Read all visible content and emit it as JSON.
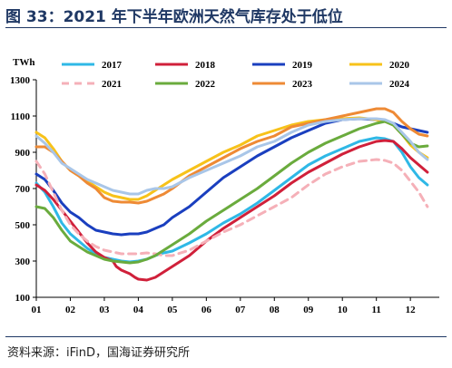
{
  "title": "图 33：2021 年下半年欧洲天然气库存处于低位",
  "source": "资料来源：iFinD，国海证券研究所",
  "chart_data": {
    "type": "line",
    "unit_label": "TWh",
    "ylim": [
      100,
      1300
    ],
    "yticks": [
      100,
      300,
      500,
      700,
      900,
      1100,
      1300
    ],
    "x": [
      1,
      2,
      3,
      4,
      5,
      6,
      7,
      8,
      9,
      10,
      11,
      12
    ],
    "xticks": [
      "01",
      "02",
      "03",
      "04",
      "05",
      "06",
      "07",
      "08",
      "09",
      "10",
      "11",
      "12"
    ],
    "grid": false,
    "legend": "top",
    "series": [
      {
        "name": "2017",
        "color": "#2fb8e6",
        "dash": false,
        "points": [
          [
            1.0,
            730
          ],
          [
            1.25,
            680
          ],
          [
            1.5,
            600
          ],
          [
            1.75,
            510
          ],
          [
            2.0,
            450
          ],
          [
            2.25,
            410
          ],
          [
            2.5,
            370
          ],
          [
            2.75,
            340
          ],
          [
            3.0,
            320
          ],
          [
            3.25,
            310
          ],
          [
            3.5,
            300
          ],
          [
            3.75,
            295
          ],
          [
            4.0,
            300
          ],
          [
            4.25,
            310
          ],
          [
            4.5,
            330
          ],
          [
            4.75,
            345
          ],
          [
            5.0,
            355
          ],
          [
            5.5,
            400
          ],
          [
            6.0,
            450
          ],
          [
            6.5,
            510
          ],
          [
            7.0,
            560
          ],
          [
            7.5,
            620
          ],
          [
            8.0,
            690
          ],
          [
            8.5,
            760
          ],
          [
            9.0,
            830
          ],
          [
            9.5,
            880
          ],
          [
            10.0,
            920
          ],
          [
            10.5,
            960
          ],
          [
            11.0,
            980
          ],
          [
            11.25,
            975
          ],
          [
            11.5,
            960
          ],
          [
            11.75,
            900
          ],
          [
            12.0,
            820
          ],
          [
            12.25,
            760
          ],
          [
            12.5,
            720
          ]
        ]
      },
      {
        "name": "2018",
        "color": "#d0203a",
        "dash": false,
        "points": [
          [
            1.0,
            720
          ],
          [
            1.25,
            690
          ],
          [
            1.5,
            640
          ],
          [
            1.75,
            580
          ],
          [
            2.0,
            520
          ],
          [
            2.25,
            460
          ],
          [
            2.5,
            400
          ],
          [
            2.75,
            350
          ],
          [
            3.0,
            320
          ],
          [
            3.25,
            300
          ],
          [
            3.35,
            270
          ],
          [
            3.5,
            250
          ],
          [
            3.75,
            230
          ],
          [
            3.9,
            210
          ],
          [
            4.0,
            200
          ],
          [
            4.25,
            195
          ],
          [
            4.5,
            210
          ],
          [
            4.75,
            240
          ],
          [
            5.0,
            270
          ],
          [
            5.5,
            330
          ],
          [
            6.0,
            410
          ],
          [
            6.5,
            480
          ],
          [
            7.0,
            540
          ],
          [
            7.5,
            600
          ],
          [
            8.0,
            660
          ],
          [
            8.5,
            730
          ],
          [
            9.0,
            790
          ],
          [
            9.5,
            840
          ],
          [
            10.0,
            890
          ],
          [
            10.5,
            930
          ],
          [
            11.0,
            960
          ],
          [
            11.25,
            965
          ],
          [
            11.5,
            960
          ],
          [
            11.75,
            920
          ],
          [
            12.0,
            870
          ],
          [
            12.25,
            830
          ],
          [
            12.5,
            790
          ]
        ]
      },
      {
        "name": "2019",
        "color": "#1a3fbf",
        "dash": false,
        "points": [
          [
            1.0,
            780
          ],
          [
            1.25,
            750
          ],
          [
            1.5,
            690
          ],
          [
            1.75,
            620
          ],
          [
            2.0,
            570
          ],
          [
            2.25,
            540
          ],
          [
            2.5,
            500
          ],
          [
            2.75,
            470
          ],
          [
            3.0,
            460
          ],
          [
            3.25,
            450
          ],
          [
            3.5,
            445
          ],
          [
            3.75,
            450
          ],
          [
            4.0,
            450
          ],
          [
            4.25,
            460
          ],
          [
            4.5,
            480
          ],
          [
            4.75,
            500
          ],
          [
            5.0,
            540
          ],
          [
            5.5,
            600
          ],
          [
            6.0,
            680
          ],
          [
            6.5,
            760
          ],
          [
            7.0,
            820
          ],
          [
            7.5,
            880
          ],
          [
            8.0,
            930
          ],
          [
            8.5,
            980
          ],
          [
            9.0,
            1020
          ],
          [
            9.5,
            1060
          ],
          [
            10.0,
            1080
          ],
          [
            10.5,
            1085
          ],
          [
            11.0,
            1080
          ],
          [
            11.25,
            1075
          ],
          [
            11.5,
            1060
          ],
          [
            11.75,
            1040
          ],
          [
            12.0,
            1030
          ],
          [
            12.25,
            1020
          ],
          [
            12.5,
            1010
          ]
        ]
      },
      {
        "name": "2020",
        "color": "#f7c21a",
        "dash": false,
        "points": [
          [
            1.0,
            1010
          ],
          [
            1.25,
            980
          ],
          [
            1.5,
            920
          ],
          [
            1.75,
            850
          ],
          [
            2.0,
            800
          ],
          [
            2.25,
            770
          ],
          [
            2.5,
            740
          ],
          [
            2.75,
            710
          ],
          [
            3.0,
            680
          ],
          [
            3.25,
            660
          ],
          [
            3.5,
            650
          ],
          [
            3.75,
            640
          ],
          [
            4.0,
            640
          ],
          [
            4.25,
            660
          ],
          [
            4.5,
            690
          ],
          [
            4.75,
            720
          ],
          [
            5.0,
            750
          ],
          [
            5.5,
            800
          ],
          [
            6.0,
            850
          ],
          [
            6.5,
            900
          ],
          [
            7.0,
            940
          ],
          [
            7.5,
            990
          ],
          [
            8.0,
            1020
          ],
          [
            8.5,
            1050
          ],
          [
            9.0,
            1070
          ],
          [
            9.5,
            1080
          ],
          [
            10.0,
            1085
          ],
          [
            10.5,
            1090
          ],
          [
            11.0,
            1080
          ],
          [
            11.25,
            1070
          ],
          [
            11.5,
            1050
          ],
          [
            11.75,
            1000
          ],
          [
            12.0,
            940
          ],
          [
            12.25,
            900
          ],
          [
            12.5,
            870
          ]
        ]
      },
      {
        "name": "2021",
        "color": "#f5b0b8",
        "dash": true,
        "points": [
          [
            1.0,
            850
          ],
          [
            1.25,
            780
          ],
          [
            1.5,
            680
          ],
          [
            1.75,
            580
          ],
          [
            2.0,
            500
          ],
          [
            2.25,
            450
          ],
          [
            2.5,
            410
          ],
          [
            2.75,
            380
          ],
          [
            3.0,
            360
          ],
          [
            3.25,
            350
          ],
          [
            3.5,
            340
          ],
          [
            3.75,
            340
          ],
          [
            4.0,
            340
          ],
          [
            4.25,
            345
          ],
          [
            4.5,
            340
          ],
          [
            4.75,
            330
          ],
          [
            5.0,
            330
          ],
          [
            5.5,
            360
          ],
          [
            6.0,
            410
          ],
          [
            6.5,
            460
          ],
          [
            7.0,
            500
          ],
          [
            7.5,
            550
          ],
          [
            8.0,
            600
          ],
          [
            8.5,
            650
          ],
          [
            9.0,
            720
          ],
          [
            9.5,
            780
          ],
          [
            10.0,
            820
          ],
          [
            10.5,
            850
          ],
          [
            11.0,
            860
          ],
          [
            11.25,
            855
          ],
          [
            11.5,
            840
          ],
          [
            11.75,
            800
          ],
          [
            12.0,
            740
          ],
          [
            12.25,
            680
          ],
          [
            12.5,
            600
          ]
        ]
      },
      {
        "name": "2022",
        "color": "#6aab3d",
        "dash": false,
        "points": [
          [
            1.0,
            600
          ],
          [
            1.25,
            590
          ],
          [
            1.5,
            540
          ],
          [
            1.75,
            470
          ],
          [
            2.0,
            410
          ],
          [
            2.25,
            380
          ],
          [
            2.5,
            350
          ],
          [
            2.75,
            330
          ],
          [
            3.0,
            310
          ],
          [
            3.25,
            300
          ],
          [
            3.5,
            295
          ],
          [
            3.75,
            290
          ],
          [
            4.0,
            295
          ],
          [
            4.25,
            310
          ],
          [
            4.5,
            330
          ],
          [
            4.75,
            360
          ],
          [
            5.0,
            390
          ],
          [
            5.5,
            450
          ],
          [
            6.0,
            520
          ],
          [
            6.5,
            580
          ],
          [
            7.0,
            640
          ],
          [
            7.5,
            700
          ],
          [
            8.0,
            770
          ],
          [
            8.5,
            840
          ],
          [
            9.0,
            900
          ],
          [
            9.5,
            950
          ],
          [
            10.0,
            990
          ],
          [
            10.5,
            1030
          ],
          [
            11.0,
            1060
          ],
          [
            11.25,
            1070
          ],
          [
            11.5,
            1050
          ],
          [
            11.75,
            1000
          ],
          [
            12.0,
            950
          ],
          [
            12.25,
            930
          ],
          [
            12.5,
            935
          ]
        ]
      },
      {
        "name": "2023",
        "color": "#ee8a35",
        "dash": false,
        "points": [
          [
            1.0,
            930
          ],
          [
            1.25,
            930
          ],
          [
            1.5,
            900
          ],
          [
            1.75,
            850
          ],
          [
            2.0,
            800
          ],
          [
            2.25,
            770
          ],
          [
            2.5,
            730
          ],
          [
            2.75,
            700
          ],
          [
            3.0,
            650
          ],
          [
            3.25,
            630
          ],
          [
            3.5,
            625
          ],
          [
            3.75,
            625
          ],
          [
            4.0,
            620
          ],
          [
            4.25,
            630
          ],
          [
            4.5,
            650
          ],
          [
            4.75,
            670
          ],
          [
            5.0,
            700
          ],
          [
            5.5,
            770
          ],
          [
            6.0,
            820
          ],
          [
            6.5,
            870
          ],
          [
            7.0,
            920
          ],
          [
            7.5,
            960
          ],
          [
            8.0,
            990
          ],
          [
            8.5,
            1040
          ],
          [
            9.0,
            1060
          ],
          [
            9.5,
            1080
          ],
          [
            10.0,
            1100
          ],
          [
            10.5,
            1120
          ],
          [
            11.0,
            1140
          ],
          [
            11.25,
            1140
          ],
          [
            11.5,
            1120
          ],
          [
            11.75,
            1070
          ],
          [
            12.0,
            1030
          ],
          [
            12.25,
            1000
          ],
          [
            12.5,
            990
          ]
        ]
      },
      {
        "name": "2024",
        "color": "#a9c6e8",
        "dash": false,
        "points": [
          [
            1.0,
            990
          ],
          [
            1.25,
            950
          ],
          [
            1.5,
            900
          ],
          [
            1.75,
            840
          ],
          [
            2.0,
            810
          ],
          [
            2.25,
            780
          ],
          [
            2.5,
            750
          ],
          [
            2.75,
            730
          ],
          [
            3.0,
            710
          ],
          [
            3.25,
            690
          ],
          [
            3.5,
            680
          ],
          [
            3.75,
            670
          ],
          [
            4.0,
            670
          ],
          [
            4.25,
            690
          ],
          [
            4.5,
            700
          ],
          [
            4.75,
            700
          ],
          [
            5.0,
            710
          ],
          [
            5.5,
            760
          ],
          [
            6.0,
            800
          ],
          [
            6.5,
            840
          ],
          [
            7.0,
            880
          ],
          [
            7.5,
            930
          ],
          [
            8.0,
            960
          ],
          [
            8.5,
            1010
          ],
          [
            9.0,
            1050
          ],
          [
            9.5,
            1070
          ],
          [
            10.0,
            1080
          ],
          [
            10.5,
            1085
          ],
          [
            11.0,
            1085
          ],
          [
            11.25,
            1080
          ],
          [
            11.5,
            1060
          ],
          [
            11.75,
            1010
          ],
          [
            12.0,
            960
          ],
          [
            12.25,
            900
          ],
          [
            12.5,
            860
          ]
        ]
      }
    ]
  }
}
